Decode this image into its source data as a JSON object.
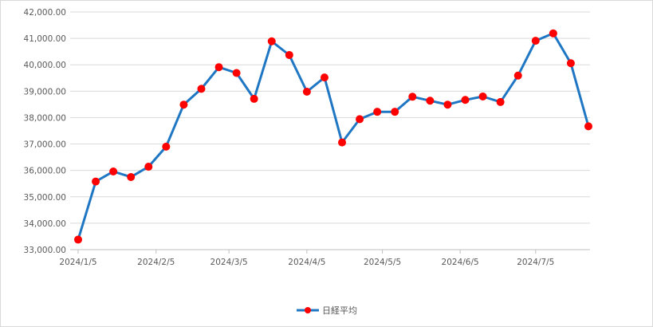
{
  "chart_data": {
    "type": "line",
    "title": "",
    "xlabel": "",
    "ylabel": "",
    "ylim": [
      33000,
      42000
    ],
    "y_ticks": [
      33000,
      34000,
      35000,
      36000,
      37000,
      38000,
      39000,
      40000,
      41000,
      42000
    ],
    "y_tick_labels": [
      "33,000.00",
      "34,000.00",
      "35,000.00",
      "36,000.00",
      "37,000.00",
      "38,000.00",
      "39,000.00",
      "40,000.00",
      "41,000.00",
      "42,000.00"
    ],
    "x_tick_labels": [
      {
        "label": "2024/1/5",
        "index": 0
      },
      {
        "label": "2024/2/5",
        "index": 4.43
      },
      {
        "label": "2024/3/5",
        "index": 8.57
      },
      {
        "label": "2024/4/5",
        "index": 13.0
      },
      {
        "label": "2024/5/5",
        "index": 17.29
      },
      {
        "label": "2024/6/5",
        "index": 21.71
      },
      {
        "label": "2024/7/5",
        "index": 26.0
      }
    ],
    "grid": true,
    "legend_position": "bottom",
    "series": [
      {
        "name": "日経平均",
        "line_color": "#1f77c4",
        "marker_color": "#ff0000",
        "values": [
          33380,
          35580,
          35960,
          35750,
          36140,
          36900,
          38490,
          39090,
          39910,
          39690,
          38710,
          40890,
          40370,
          38980,
          39520,
          37060,
          37940,
          38220,
          38220,
          38790,
          38640,
          38490,
          38670,
          38800,
          38590,
          39590,
          40910,
          41190,
          40060,
          37670
        ]
      }
    ]
  }
}
